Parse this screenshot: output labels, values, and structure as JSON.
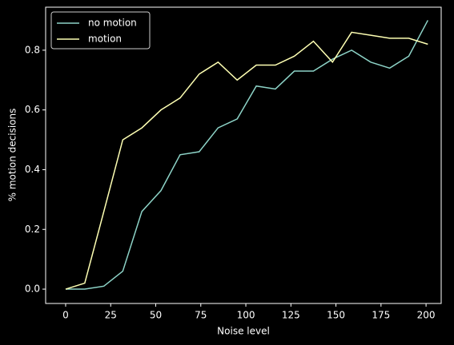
{
  "chart_data": {
    "type": "line",
    "xlabel": "Noise level",
    "ylabel": "% motion decisions",
    "x": [
      0,
      10.6,
      21.2,
      31.7,
      42.3,
      52.9,
      63.5,
      74.1,
      84.6,
      95.2,
      105.8,
      116.4,
      126.9,
      137.5,
      148.1,
      158.7,
      169.3,
      179.8,
      190.4,
      201
    ],
    "series": [
      {
        "name": "no motion",
        "color": "#8dd3c7",
        "values": [
          0,
          0,
          0.01,
          0.06,
          0.26,
          0.33,
          0.45,
          0.46,
          0.54,
          0.57,
          0.68,
          0.67,
          0.73,
          0.73,
          0.77,
          0.8,
          0.76,
          0.74,
          0.78,
          0.9
        ]
      },
      {
        "name": "motion",
        "color": "#feffb3",
        "values": [
          0,
          0.02,
          0.26,
          0.5,
          0.54,
          0.6,
          0.64,
          0.72,
          0.76,
          0.7,
          0.75,
          0.75,
          0.78,
          0.83,
          0.76,
          0.86,
          0.85,
          0.84,
          0.84,
          0.82
        ]
      }
    ],
    "xlim": [
      -11.1,
      208.4
    ],
    "ylim": [
      -0.048,
      0.944
    ],
    "xticks": [
      0,
      25,
      50,
      75,
      100,
      125,
      150,
      175,
      200
    ],
    "yticks": [
      {
        "value": 0,
        "label": "0.0"
      },
      0.2,
      0.4,
      0.6,
      0.8
    ],
    "legend": "upper left"
  }
}
